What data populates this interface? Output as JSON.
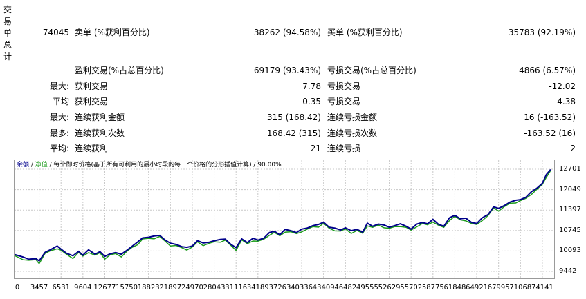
{
  "side_label": "交易单总计",
  "summary": {
    "total": "74045",
    "sell_label": "卖单 (%获利百分比)",
    "sell_value": "38262 (94.58%)",
    "buy_label": "买单 (%获利百分比)",
    "buy_value": "35783 (92.19%)"
  },
  "rows": {
    "profit_trades": {
      "label": "盈利交易(%占总百分比)",
      "value": "69179 (93.43%)"
    },
    "loss_trades": {
      "label": "亏损交易(%占总百分比)",
      "value": "4866 (6.57%)"
    },
    "largest": {
      "prefix": "最大:",
      "profit_label": "获利交易",
      "profit_value": "7.78",
      "loss_label": "亏损交易",
      "loss_value": "-12.02"
    },
    "average": {
      "prefix": "平均",
      "profit_label": "获利交易",
      "profit_value": "0.35",
      "loss_label": "亏损交易",
      "loss_value": "-4.38"
    },
    "max_consec": {
      "prefix": "最大:",
      "profit_label": "连续获利金额",
      "profit_value": "315 (168.42)",
      "loss_label": "连续亏损金额",
      "loss_value": "16 (-163.52)"
    },
    "max_consec_count": {
      "prefix": "最多:",
      "profit_label": "连续获利次数",
      "profit_value": "168.42 (315)",
      "loss_label": "连续亏损次数",
      "loss_value": "-163.52 (16)"
    },
    "avg_consec": {
      "prefix": "平均:",
      "profit_label": "连续获利",
      "profit_value": "21",
      "loss_label": "连续亏损",
      "loss_value": "2"
    }
  },
  "chart_data": {
    "type": "line",
    "legend": {
      "balance": "余额",
      "sep1": " / ",
      "equity": "净值",
      "desc": " / 每个即时价格(基于所有可利用的最小时段的每一个价格的分形插值计算) / 90.00%"
    },
    "colors": {
      "balance": "#00008b",
      "equity": "#1a9a1a",
      "grid": "#c8c8c8",
      "border": "#9a9a9a"
    },
    "y_ticks": [
      "12701",
      "12049",
      "11397",
      "10745",
      "10093",
      "9442"
    ],
    "x_ticks": [
      "0",
      "3457",
      "6531",
      "9604",
      "12677",
      "15750",
      "18823",
      "21897",
      "24970",
      "28043",
      "31116",
      "34189",
      "37263",
      "40336",
      "43409",
      "46482",
      "49555",
      "52629",
      "55702",
      "58775",
      "61848",
      "64921",
      "67995",
      "71068",
      "74141"
    ],
    "ylim": [
      9442,
      12701
    ],
    "xlim": [
      0,
      75800
    ],
    "series": [
      {
        "name": "余额",
        "x": [
          0,
          1200,
          2000,
          3000,
          3457,
          4300,
          5000,
          6000,
          6531,
          7300,
          8200,
          9000,
          9604,
          10400,
          11300,
          12000,
          12677,
          13400,
          14200,
          15000,
          15750,
          16500,
          17300,
          18000,
          18823,
          19600,
          20400,
          21100,
          21897,
          22700,
          23500,
          24200,
          24970,
          25700,
          26500,
          27300,
          28043,
          28900,
          29600,
          30400,
          31116,
          31900,
          32700,
          33500,
          34189,
          35000,
          35800,
          36500,
          37263,
          38000,
          38800,
          39600,
          40336,
          41100,
          41900,
          42700,
          43409,
          44200,
          45000,
          45800,
          46482,
          47300,
          48100,
          48900,
          49555,
          50300,
          51100,
          51900,
          52629,
          53400,
          54200,
          55000,
          55702,
          56500,
          57300,
          58000,
          58775,
          59500,
          60300,
          61100,
          61848,
          62600,
          63400,
          64200,
          64921,
          65700,
          66500,
          67300,
          67995,
          68800,
          69600,
          70400,
          71068,
          71800,
          72600,
          73400,
          74141,
          74700,
          75300
        ],
        "values": [
          9980,
          9900,
          9830,
          9850,
          9780,
          10050,
          10130,
          10250,
          10150,
          10020,
          9940,
          10080,
          9960,
          10130,
          9990,
          10070,
          9920,
          10000,
          10040,
          9990,
          10110,
          10240,
          10380,
          10510,
          10530,
          10570,
          10590,
          10450,
          10340,
          10300,
          10230,
          10210,
          10250,
          10420,
          10350,
          10370,
          10420,
          10460,
          10470,
          10300,
          10200,
          10480,
          10360,
          10500,
          10440,
          10500,
          10680,
          10720,
          10610,
          10780,
          10740,
          10680,
          10790,
          10820,
          10900,
          10940,
          11010,
          10850,
          10820,
          10760,
          10830,
          10740,
          10780,
          10690,
          10980,
          10880,
          10950,
          10920,
          10850,
          10900,
          10960,
          10880,
          10790,
          10950,
          11000,
          10960,
          11100,
          10950,
          10880,
          11150,
          11230,
          11120,
          11140,
          11000,
          10970,
          11150,
          11250,
          11500,
          11450,
          11540,
          11650,
          11710,
          11730,
          11800,
          11980,
          12100,
          12250,
          12530,
          12690
        ]
      }
    ]
  }
}
